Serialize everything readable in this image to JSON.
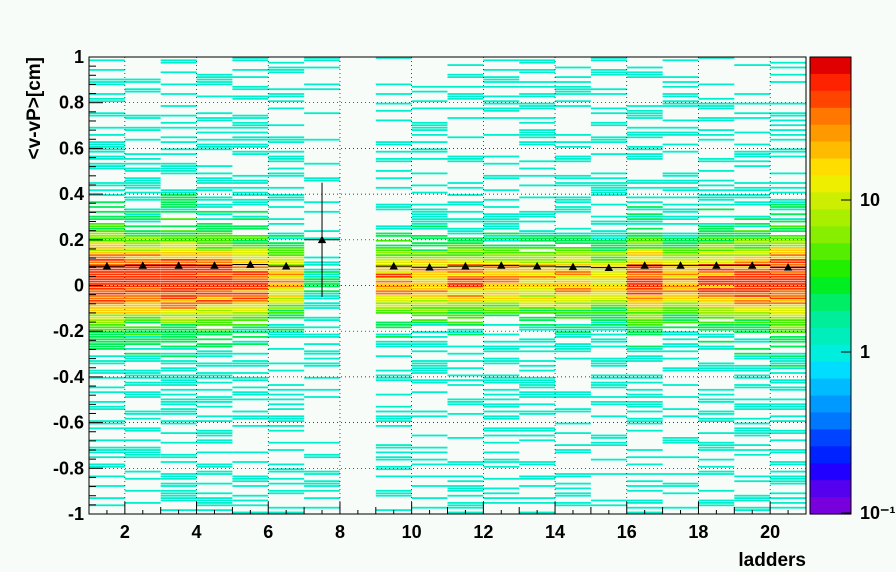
{
  "chart_data": {
    "type": "heatmap",
    "xlabel": "ladders",
    "ylabel": "<v-vP>[cm]",
    "xlim": [
      1,
      21
    ],
    "ylim": [
      -1,
      1
    ],
    "x_ticks": [
      "2",
      "4",
      "6",
      "8",
      "10",
      "12",
      "14",
      "16",
      "18",
      "20"
    ],
    "y_ticks": [
      "1",
      "0.8",
      "0.6",
      "0.4",
      "0.2",
      "0",
      "-0.2",
      "-0.4",
      "-0.6",
      "-0.8",
      "-1"
    ],
    "colorbar": {
      "scale": "log",
      "tick_labels": [
        "10",
        "1",
        "10⁻¹"
      ],
      "colors": [
        "#e00000",
        "#ff2200",
        "#ff4400",
        "#ff7700",
        "#ff9900",
        "#ffbb00",
        "#ffdd00",
        "#eeee00",
        "#ccee00",
        "#aaee00",
        "#88ee00",
        "#55ee00",
        "#22ee00",
        "#00ee22",
        "#00ee66",
        "#00ee99",
        "#00eebb",
        "#00eedd",
        "#00ddff",
        "#00bbff",
        "#0099ff",
        "#0077ff",
        "#0044ff",
        "#0022ff",
        "#2200ff",
        "#5500ee",
        "#7700dd"
      ]
    },
    "empty_ladders": [
      7,
      8
    ],
    "series": [
      {
        "type": "profile",
        "marker": "triangle",
        "x": [
          1.5,
          2.5,
          3.5,
          4.5,
          5.5,
          6.5,
          7.5,
          9.5,
          10.5,
          11.5,
          12.5,
          13.5,
          14.5,
          15.5,
          16.5,
          17.5,
          18.5,
          19.5,
          20.5
        ],
        "y": [
          0.085,
          0.088,
          0.088,
          0.088,
          0.092,
          0.085,
          0.2,
          0.085,
          0.08,
          0.085,
          0.088,
          0.085,
          0.082,
          0.078,
          0.088,
          0.088,
          0.088,
          0.088,
          0.08
        ],
        "y_err": [
          0.01,
          0.01,
          0.01,
          0.01,
          0.01,
          0.01,
          0.25,
          0.01,
          0.01,
          0.01,
          0.01,
          0.01,
          0.01,
          0.01,
          0.01,
          0.01,
          0.01,
          0.01,
          0.01
        ]
      }
    ],
    "ladder_intensity": [
      1.0,
      0.9,
      1.0,
      0.85,
      0.75,
      0.55,
      0.15,
      0.0,
      0.6,
      0.55,
      0.6,
      0.55,
      0.55,
      0.55,
      0.5,
      0.8,
      0.6,
      0.75,
      0.8,
      0.95
    ]
  }
}
